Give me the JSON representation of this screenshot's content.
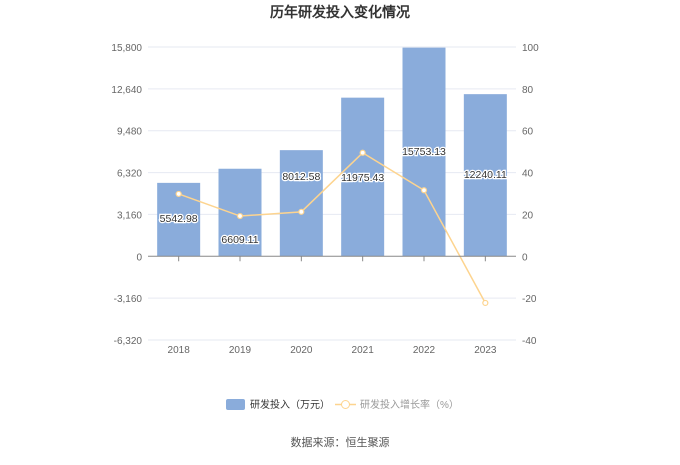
{
  "chart_data": {
    "type": "bar+line",
    "title": "历年研发投入变化情况",
    "categories": [
      "2018",
      "2019",
      "2020",
      "2021",
      "2022",
      "2023"
    ],
    "series": [
      {
        "name": "研发投入（万元）",
        "type": "bar",
        "axis": "left",
        "color": "#8aacdb",
        "values": [
          5542.98,
          6609.11,
          8012.58,
          11975.43,
          15753.13,
          12240.11
        ],
        "labels": [
          "5542.98",
          "6609.11",
          "8012.58",
          "11975.43",
          "15753.13",
          "12240.11"
        ]
      },
      {
        "name": "研发投入增长率（%）",
        "type": "line",
        "axis": "right",
        "color": "#fdd48f",
        "values": [
          29.8,
          19.23,
          21.24,
          49.46,
          31.55,
          -22.3
        ]
      }
    ],
    "left_axis": {
      "ylim": [
        -6320,
        15800
      ],
      "ticks": [
        "15,800",
        "12,640",
        "9,480",
        "6,320",
        "3,160",
        "0",
        "-3,160",
        "-6,320"
      ]
    },
    "right_axis": {
      "ylim": [
        -40,
        100
      ],
      "ticks": [
        "100",
        "80",
        "60",
        "40",
        "20",
        "0",
        "-20",
        "-40"
      ]
    },
    "legend": "bottom",
    "source": "数据来源：恒生聚源"
  }
}
